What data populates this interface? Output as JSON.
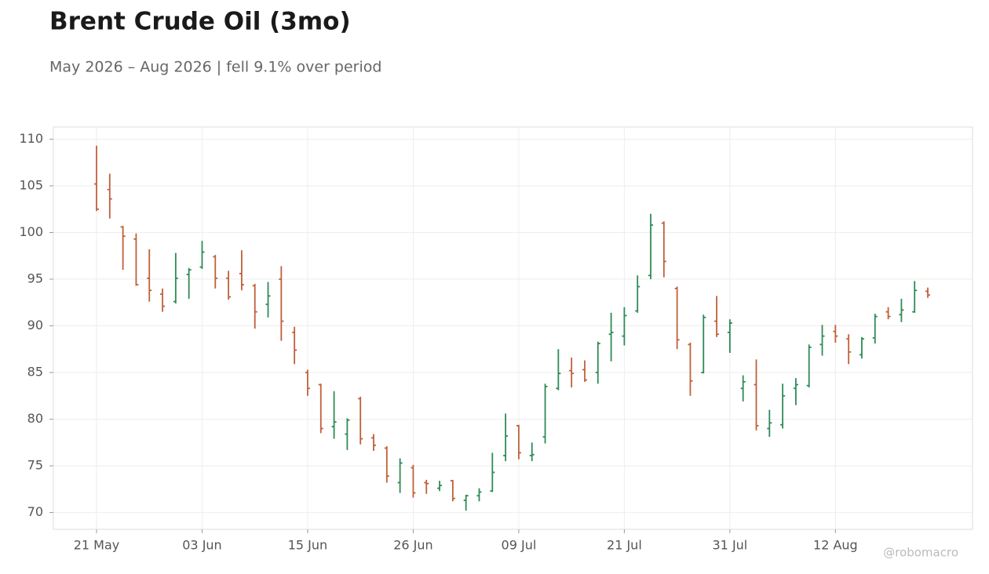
{
  "chart_data": {
    "type": "ohlc",
    "title": "Brent Crude Oil (3mo)",
    "subtitle": "May 2026 – Aug 2026 | fell 9.1% over period",
    "watermark": "@robomacro",
    "categories": [
      "21 May",
      null,
      null,
      null,
      null,
      null,
      null,
      null,
      "03 Jun",
      null,
      null,
      null,
      null,
      null,
      null,
      null,
      "15 Jun",
      null,
      null,
      null,
      null,
      null,
      null,
      null,
      "26 Jun",
      null,
      null,
      null,
      null,
      null,
      null,
      null,
      "09 Jul",
      null,
      null,
      null,
      null,
      null,
      null,
      null,
      "21 Jul",
      null,
      null,
      null,
      null,
      null,
      null,
      null,
      "31 Jul",
      null,
      null,
      null,
      null,
      null,
      null,
      null,
      "12 Aug",
      null,
      null,
      null,
      null,
      null,
      null,
      null
    ],
    "open": [
      105.2,
      104.6,
      100.6,
      99.3,
      95.1,
      93.4,
      92.6,
      95.5,
      96.3,
      97.4,
      95.1,
      95.6,
      94.3,
      92.3,
      95,
      89.3,
      85,
      83.7,
      79.2,
      78.4,
      82.2,
      78,
      76.9,
      73.2,
      74.8,
      73.2,
      72.6,
      73.4,
      71.3,
      71.8,
      72.3,
      76.1,
      79.3,
      76.1,
      78.1,
      83.3,
      85.2,
      85.3,
      85,
      89.1,
      88.9,
      91.6,
      95.4,
      101,
      94,
      88,
      85,
      90.5,
      89.3,
      83.3,
      83.7,
      79,
      79.4,
      83.3,
      83.6,
      88,
      89.4,
      88.6,
      86.9,
      88.7,
      91.5,
      91.2,
      91.5,
      93.7
    ],
    "high": [
      109.3,
      106.3,
      100.7,
      99.9,
      98.2,
      94,
      97.8,
      96.2,
      99.1,
      97.6,
      95.9,
      98.1,
      94.5,
      94.7,
      96.4,
      89.9,
      85.3,
      83.8,
      83,
      80.1,
      82.4,
      78.4,
      77.1,
      75.8,
      75.1,
      73.5,
      73.4,
      73.5,
      71.9,
      72.6,
      76.4,
      80.6,
      79.4,
      77.5,
      83.8,
      87.5,
      86.6,
      86.3,
      88.3,
      91.4,
      92,
      95.4,
      102,
      101.2,
      94.2,
      88.2,
      91.2,
      93.2,
      90.7,
      84.7,
      86.4,
      81,
      83.8,
      84.4,
      88,
      90.1,
      90.1,
      89.1,
      88.8,
      91.3,
      92,
      92.9,
      94.8,
      94.1
    ],
    "low": [
      102.3,
      101.5,
      96,
      94.3,
      92.6,
      91.5,
      92.4,
      92.9,
      96.1,
      94,
      92.8,
      93.8,
      89.7,
      90.9,
      88.4,
      85.9,
      82.5,
      78.5,
      77.9,
      76.7,
      77.3,
      76.6,
      73.2,
      72.1,
      71.6,
      72,
      72.3,
      71.2,
      70.2,
      71.2,
      72.2,
      75.5,
      75.7,
      75.5,
      77.4,
      83.1,
      83.4,
      84,
      83.8,
      86.2,
      87.9,
      91.4,
      95,
      95.2,
      87.5,
      82.5,
      84.9,
      88.8,
      87.1,
      81.9,
      78.8,
      78.1,
      79,
      81.5,
      83.4,
      86.8,
      88.2,
      85.9,
      86.5,
      88.1,
      90.7,
      90.4,
      91.4,
      93
    ],
    "close": [
      102.5,
      103.6,
      99.6,
      94.4,
      93.8,
      92.1,
      95.1,
      96,
      97.9,
      95.1,
      93.1,
      94.4,
      91.5,
      93.2,
      90.5,
      87.4,
      83.3,
      79,
      79.7,
      79.9,
      77.9,
      77.2,
      73.9,
      75.3,
      72.1,
      73.1,
      72.9,
      71.5,
      71.8,
      72.2,
      74.3,
      78.2,
      76.4,
      76.2,
      83.5,
      84.9,
      84.9,
      84.2,
      88.1,
      89.3,
      91.1,
      94.2,
      100.8,
      96.9,
      88.5,
      84.1,
      90.9,
      89.1,
      90.3,
      84,
      79.3,
      79.6,
      82.5,
      83.7,
      87.7,
      88.9,
      88.9,
      87.2,
      88.6,
      91,
      91,
      91.7,
      93.8,
      93.3
    ],
    "up_color": "#2e8b57",
    "down_color": "#c0603a",
    "ylim": [
      68.2,
      111.3
    ],
    "yticks": [
      70,
      75,
      80,
      85,
      90,
      95,
      100,
      105,
      110
    ],
    "grid": true
  }
}
